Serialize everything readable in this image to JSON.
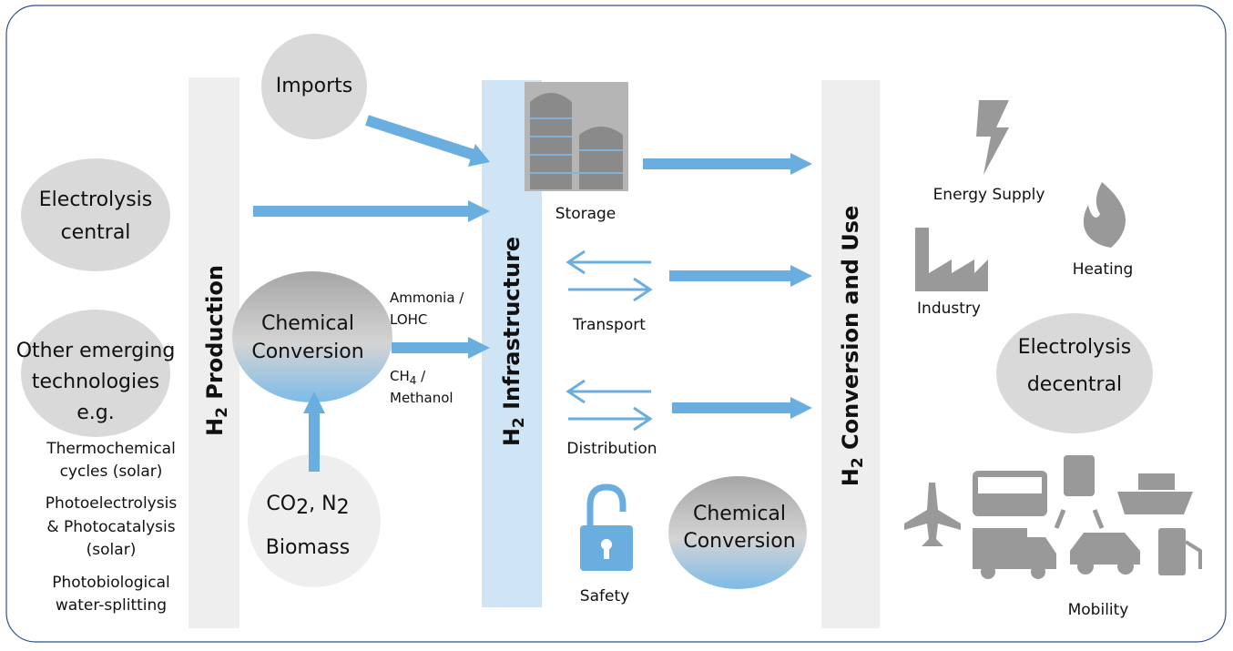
{
  "columns": [
    {
      "main": "H",
      "sub": "2",
      "rest": " Production"
    },
    {
      "main": "H",
      "sub": "2",
      "rest": " Infrastructure"
    },
    {
      "main": "H",
      "sub": "2",
      "rest": " Conversion and Use"
    }
  ],
  "sources": {
    "imports": "Imports",
    "electrolysis_central": [
      "Electrolysis",
      "central"
    ],
    "emerging": [
      "Other emerging",
      "technologies",
      "e.g."
    ],
    "emerging_examples": [
      [
        "Thermochemical",
        "cycles (solar)"
      ],
      [
        "Photoelectrolysis",
        "& Photocatalysis",
        "(solar)"
      ],
      [
        "Photobiological",
        "water-splitting"
      ]
    ],
    "chemical_conversion": [
      "Chemical",
      "Conversion"
    ],
    "feedstock": {
      "parts": [
        "CO",
        "2",
        ", N",
        "2"
      ],
      "line2": "Biomass"
    }
  },
  "carriers": {
    "top": [
      "Ammonia /",
      "LOHC"
    ],
    "bottom": {
      "parts": [
        "CH",
        "4",
        " /"
      ],
      "line2": "Methanol"
    }
  },
  "infrastructure": {
    "storage": "Storage",
    "transport": "Transport",
    "distribution": "Distribution",
    "safety": "Safety",
    "chemical_conversion": [
      "Chemical",
      "Conversion"
    ]
  },
  "uses": {
    "energy_supply": "Energy Supply",
    "heating": "Heating",
    "industry": "Industry",
    "electrolysis_decentral": [
      "Electrolysis",
      "decentral"
    ],
    "mobility": "Mobility"
  }
}
